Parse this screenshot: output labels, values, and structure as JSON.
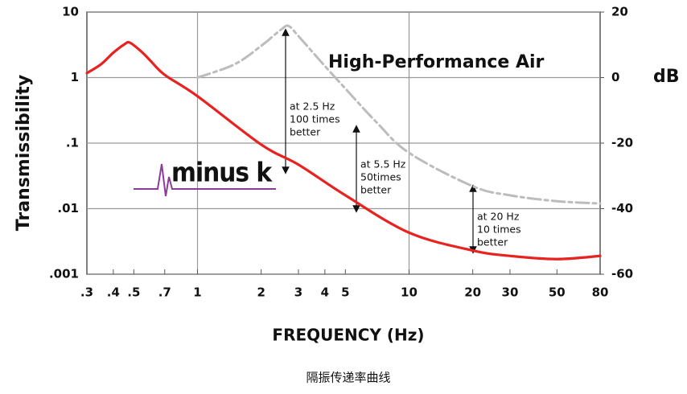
{
  "chart_data": {
    "type": "line",
    "ylabel": "Transmissibility",
    "y2label": "dB",
    "xlabel": "FREQUENCY (Hz)",
    "caption": "隔振传递率曲线",
    "xscale": "log",
    "yscale": "log",
    "grid": true,
    "xlim": [
      0.3,
      80
    ],
    "xticks": [
      {
        "value": 0.3,
        "label": ".3"
      },
      {
        "value": 0.4,
        "label": ".4"
      },
      {
        "value": 0.5,
        "label": ".5"
      },
      {
        "value": 0.7,
        "label": ".7"
      },
      1,
      2,
      3,
      4,
      5,
      10,
      20,
      30,
      50,
      80
    ],
    "ylim": [
      0.001,
      10
    ],
    "yticks": [
      10,
      1,
      {
        "value": 0.1,
        "label": ".1"
      },
      {
        "value": 0.01,
        "label": ".01"
      },
      {
        "value": 0.001,
        "label": ".001"
      }
    ],
    "y2lim": [
      -60,
      20
    ],
    "y2ticks": [
      20,
      0,
      -20,
      -40,
      -60
    ],
    "series": [
      {
        "name": "minus k",
        "color": "#e8231f",
        "x": [
          0.3,
          0.35,
          0.4,
          0.45,
          0.48,
          0.55,
          0.6,
          0.7,
          1,
          2,
          3,
          5,
          10,
          20,
          30,
          50,
          80
        ],
        "values": [
          1.17,
          1.6,
          2.4,
          3.2,
          3.4,
          2.4,
          1.8,
          1.1,
          0.52,
          0.095,
          0.047,
          0.016,
          0.0043,
          0.0023,
          0.0019,
          0.0017,
          0.0019
        ]
      },
      {
        "name": "High-Performance Air",
        "color": "#bcbcbc",
        "x": [
          1,
          1.5,
          2,
          2.5,
          2.7,
          3,
          4,
          5,
          7,
          10,
          20,
          30,
          50,
          80
        ],
        "values": [
          1,
          1.6,
          3.05,
          5.5,
          6.1,
          4.3,
          1.5,
          0.68,
          0.21,
          0.071,
          0.022,
          0.016,
          0.013,
          0.012
        ]
      }
    ],
    "annotations": [
      [
        "at 2.5 Hz",
        "100 times",
        "better"
      ],
      [
        "at 5.5 Hz",
        "50times",
        "better"
      ],
      [
        "at 20 Hz",
        "10 times",
        "better"
      ]
    ]
  }
}
